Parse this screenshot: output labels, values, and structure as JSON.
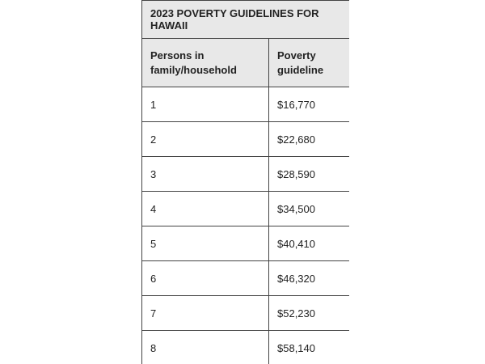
{
  "table": {
    "title": "2023 POVERTY GUIDELINES FOR HAWAII",
    "header": [
      "Persons in family/household",
      "Poverty guideline"
    ],
    "rows": [
      [
        "1",
        "$16,770"
      ],
      [
        "2",
        "$22,680"
      ],
      [
        "3",
        "$28,590"
      ],
      [
        "4",
        "$34,500"
      ],
      [
        "5",
        "$40,410"
      ],
      [
        "6",
        "$46,320"
      ],
      [
        "7",
        "$52,230"
      ],
      [
        "8",
        "$58,140"
      ]
    ]
  }
}
